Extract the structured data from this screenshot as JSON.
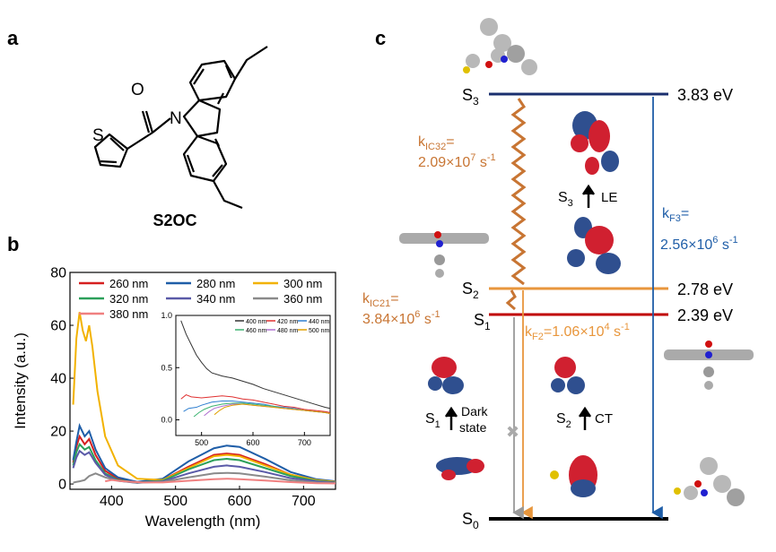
{
  "panels": {
    "a": "a",
    "b": "b",
    "c": "c"
  },
  "molecule": {
    "name": "S2OC",
    "atom_S": "S",
    "atom_O": "O",
    "atom_N": "N"
  },
  "colors": {
    "s260": "#d62020",
    "s280": "#1f5ea8",
    "s300": "#f2b200",
    "s320": "#2ca05a",
    "s340": "#5a5aa8",
    "s360": "#8a8a8a",
    "s380": "#f08080",
    "i400": "#333333",
    "i420": "#e03030",
    "i440": "#2f7fd0",
    "i460": "#3cb371",
    "i480": "#b070d0",
    "i500": "#e0a000",
    "ic": "#c87533",
    "s3line": "#1a2f6e",
    "s2line": "#e8963c",
    "s1line": "#c00000",
    "f3": "#1f5ea8",
    "f2": "#e8963c"
  },
  "chart_data": [
    {
      "type": "line",
      "xlabel": "Wavelength (nm)",
      "ylabel": "Intensity (a.u.)",
      "xlim": [
        335,
        750
      ],
      "ylim": [
        -2,
        80
      ],
      "xticks": [
        "400",
        "500",
        "600",
        "700"
      ],
      "yticks": [
        "0",
        "20",
        "40",
        "60",
        "80"
      ],
      "legend": [
        "260 nm",
        "280 nm",
        "300 nm",
        "320 nm",
        "340 nm",
        "360 nm",
        "380 nm"
      ],
      "series": [
        {
          "name": "260 nm",
          "color_key": "s260",
          "x": [
            340,
            345,
            350,
            358,
            365,
            375,
            390,
            410,
            440,
            480,
            520,
            560,
            580,
            600,
            640,
            680,
            720,
            750
          ],
          "y": [
            8,
            14,
            18,
            15,
            17,
            11,
            5,
            2,
            0.5,
            1.5,
            6.5,
            11,
            11.5,
            11,
            7.5,
            3.5,
            1.5,
            0.8
          ]
        },
        {
          "name": "280 nm",
          "color_key": "s280",
          "x": [
            340,
            345,
            350,
            358,
            365,
            375,
            390,
            410,
            440,
            480,
            520,
            560,
            580,
            600,
            640,
            680,
            720,
            750
          ],
          "y": [
            9,
            16,
            22,
            18,
            20,
            13,
            6,
            2.5,
            0.8,
            2,
            8.5,
            13.5,
            14.5,
            14,
            9.5,
            4.5,
            1.8,
            1
          ]
        },
        {
          "name": "300 nm",
          "color_key": "s300",
          "x": [
            340,
            345,
            350,
            355,
            360,
            365,
            370,
            378,
            390,
            410,
            440,
            480,
            520,
            560,
            580,
            600,
            640,
            680,
            720,
            750
          ],
          "y": [
            30,
            55,
            65,
            58,
            54,
            60,
            52,
            35,
            18,
            7,
            2,
            1.5,
            6,
            10.5,
            11,
            10.5,
            7,
            3.5,
            1.5,
            0.8
          ]
        },
        {
          "name": "320 nm",
          "color_key": "s320",
          "x": [
            340,
            345,
            350,
            358,
            365,
            375,
            390,
            410,
            440,
            480,
            520,
            560,
            580,
            600,
            640,
            680,
            720,
            750
          ],
          "y": [
            7,
            12,
            15,
            13,
            14,
            9,
            4,
            1.5,
            0.5,
            1.2,
            5.5,
            9,
            9.5,
            9,
            6,
            3,
            1.2,
            0.6
          ]
        },
        {
          "name": "340 nm",
          "color_key": "s340",
          "x": [
            340,
            345,
            350,
            358,
            365,
            375,
            390,
            410,
            440,
            480,
            520,
            560,
            580,
            600,
            640,
            680,
            720,
            750
          ],
          "y": [
            6,
            10,
            12.5,
            11,
            12,
            8,
            3.5,
            1.2,
            0.4,
            1,
            4,
            6.5,
            7,
            6.5,
            4.5,
            2.2,
            1,
            0.5
          ]
        },
        {
          "name": "360 nm",
          "color_key": "s360",
          "x": [
            340,
            345,
            350,
            358,
            365,
            375,
            390,
            410,
            440,
            480,
            520,
            560,
            580,
            600,
            640,
            680,
            720,
            750
          ],
          "y": [
            0.5,
            0.8,
            1,
            1.5,
            3,
            4,
            2.5,
            1.2,
            0.5,
            0.8,
            2.5,
            4,
            4.2,
            4,
            2.8,
            1.4,
            0.6,
            0.3
          ]
        },
        {
          "name": "380 nm",
          "color_key": "s380",
          "x": [
            390,
            400,
            420,
            450,
            480,
            520,
            560,
            580,
            600,
            640,
            680,
            720,
            750
          ],
          "y": [
            1,
            1.5,
            1,
            0.6,
            0.6,
            1.2,
            1.8,
            2,
            1.8,
            1.3,
            0.7,
            0.3,
            0.2
          ]
        }
      ]
    },
    {
      "type": "line",
      "title": "inset",
      "xlim": [
        450,
        750
      ],
      "ylim": [
        -0.15,
        1.0
      ],
      "xticks": [
        "500",
        "600",
        "700"
      ],
      "yticks": [
        "0.0",
        "0.5",
        "1.0"
      ],
      "legend": [
        "400 nm",
        "420 nm",
        "440 nm",
        "460 nm",
        "480 nm",
        "500 nm"
      ],
      "series": [
        {
          "name": "400 nm",
          "color_key": "i400",
          "x": [
            460,
            470,
            480,
            490,
            500,
            510,
            520,
            540,
            560,
            580,
            600,
            620,
            640,
            660,
            680,
            700,
            720,
            740,
            750
          ],
          "y": [
            0.95,
            0.82,
            0.72,
            0.62,
            0.55,
            0.49,
            0.45,
            0.42,
            0.4,
            0.37,
            0.34,
            0.3,
            0.27,
            0.24,
            0.21,
            0.18,
            0.15,
            0.12,
            0.11
          ]
        },
        {
          "name": "420 nm",
          "color_key": "i420",
          "x": [
            460,
            470,
            480,
            500,
            520,
            540,
            560,
            580,
            600,
            620,
            640,
            660,
            680,
            700,
            720,
            740,
            750
          ],
          "y": [
            0.2,
            0.24,
            0.22,
            0.21,
            0.22,
            0.23,
            0.22,
            0.2,
            0.19,
            0.17,
            0.15,
            0.13,
            0.12,
            0.1,
            0.09,
            0.08,
            0.07
          ]
        },
        {
          "name": "440 nm",
          "color_key": "i440",
          "x": [
            465,
            475,
            490,
            500,
            520,
            540,
            560,
            580,
            600,
            620,
            640,
            660,
            680,
            700,
            720,
            740,
            750
          ],
          "y": [
            0.08,
            0.11,
            0.12,
            0.14,
            0.17,
            0.18,
            0.18,
            0.17,
            0.16,
            0.15,
            0.13,
            0.12,
            0.11,
            0.09,
            0.08,
            0.07,
            0.06
          ]
        },
        {
          "name": "460 nm",
          "color_key": "i460",
          "x": [
            485,
            495,
            505,
            520,
            540,
            560,
            580,
            600,
            620,
            640,
            660,
            680,
            700,
            720,
            740,
            750
          ],
          "y": [
            0.03,
            0.07,
            0.1,
            0.13,
            0.15,
            0.16,
            0.16,
            0.15,
            0.14,
            0.13,
            0.11,
            0.1,
            0.09,
            0.08,
            0.07,
            0.06
          ]
        },
        {
          "name": "480 nm",
          "color_key": "i480",
          "x": [
            505,
            515,
            525,
            540,
            560,
            580,
            600,
            620,
            640,
            660,
            680,
            700,
            720,
            740,
            750
          ],
          "y": [
            0.04,
            0.08,
            0.11,
            0.13,
            0.15,
            0.15,
            0.14,
            0.13,
            0.12,
            0.11,
            0.1,
            0.09,
            0.08,
            0.07,
            0.06
          ]
        },
        {
          "name": "500 nm",
          "color_key": "i500",
          "x": [
            525,
            535,
            545,
            560,
            580,
            600,
            620,
            640,
            660,
            680,
            700,
            720,
            740,
            750
          ],
          "y": [
            0.05,
            0.09,
            0.12,
            0.14,
            0.15,
            0.14,
            0.13,
            0.12,
            0.11,
            0.1,
            0.09,
            0.08,
            0.07,
            0.06
          ]
        }
      ]
    }
  ],
  "diagram": {
    "S3": "S",
    "S3_sub": "3",
    "S3_energy": "3.83 eV",
    "S2": "S",
    "S2_sub": "2",
    "S2_energy": "2.78 eV",
    "S1": "S",
    "S1_sub": "1",
    "S1_energy": "2.39 eV",
    "S0": "S",
    "S0_sub": "0",
    "kIC32_k": "k",
    "kIC32_sub": "IC32",
    "kIC32_eq": "=",
    "kIC32_val": "2.09×10",
    "kIC32_exp": "7",
    "kIC32_unit": " s",
    "kIC32_uexp": "-1",
    "kIC21_k": "k",
    "kIC21_sub": "IC21",
    "kIC21_eq": "=",
    "kIC21_val": "3.84×10",
    "kIC21_exp": "6",
    "kIC21_unit": " s",
    "kIC21_uexp": "-1",
    "kF3_k": "k",
    "kF3_sub": "F3",
    "kF3_eq": "=",
    "kF3_val": "2.56×10",
    "kF3_exp": "6",
    "kF3_unit": " s",
    "kF3_uexp": "-1",
    "kF2_k": "k",
    "kF2_sub": "F2",
    "kF2_val": "=1.06×10",
    "kF2_exp": "4",
    "kF2_unit": " s",
    "kF2_uexp": "-1",
    "S3_trans_S": "S",
    "S3_trans_sub": "3",
    "S3_trans_label": "LE",
    "S2_trans_S": "S",
    "S2_trans_sub": "2",
    "S2_trans_label": "CT",
    "S1_trans_S": "S",
    "S1_trans_sub": "1",
    "S1_trans_label1": "Dark",
    "S1_trans_label2": "state",
    "cross": "✖"
  }
}
